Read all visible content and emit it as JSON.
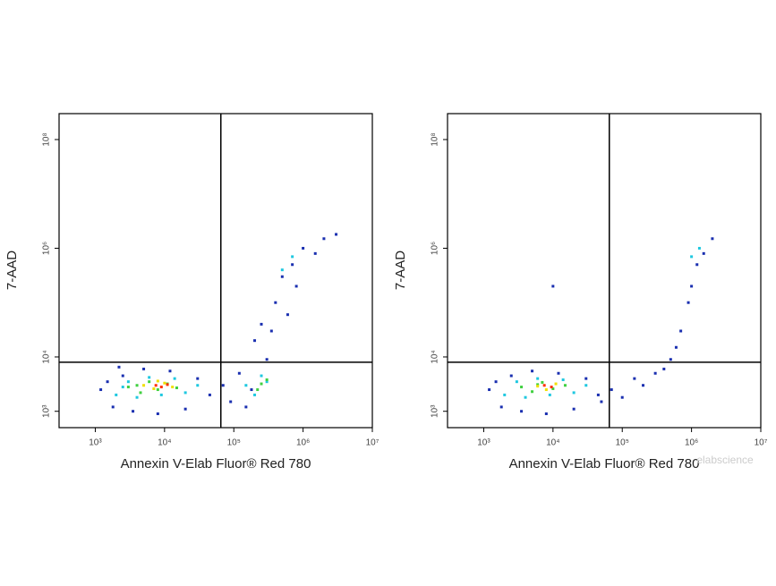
{
  "chart_data": [
    {
      "type": "scatter",
      "x_label": "Annexin V-Elab Fluor® Red 780",
      "y_label": "7-AAD",
      "xscale": "log",
      "yscale": "log",
      "xlim": [
        300,
        10000000
      ],
      "ylim": [
        500,
        300000000
      ],
      "xticks": [
        {
          "value": 1000,
          "label": "10³"
        },
        {
          "value": 10000,
          "label": "10⁴"
        },
        {
          "value": 100000,
          "label": "10⁵"
        },
        {
          "value": 1000000,
          "label": "10⁶"
        },
        {
          "value": 10000000,
          "label": "10⁷"
        }
      ],
      "yticks": [
        {
          "value": 1000,
          "label": "10³"
        },
        {
          "value": 10000,
          "label": "10⁴"
        },
        {
          "value": 1000000,
          "label": "10⁶"
        },
        {
          "value": 100000000,
          "label": "10⁸"
        }
      ],
      "x_gate": 65000,
      "y_gate": 8000,
      "series": [
        {
          "color": "#1a2fb0",
          "x": [
            1200,
            1800,
            2500,
            3500,
            5000,
            8000,
            12000,
            20000,
            30000,
            45000,
            1500,
            2200,
            70000,
            90000,
            120000,
            150000,
            200000,
            250000,
            300000,
            400000,
            500000,
            700000,
            1000000,
            1500000,
            2000000,
            800000,
            3000000,
            600000,
            350000,
            180000
          ],
          "values": [
            2500,
            1200,
            4500,
            1000,
            6000,
            900,
            5500,
            1100,
            4000,
            2000,
            3500,
            6500,
            3000,
            1500,
            5000,
            1200,
            20000,
            40000,
            9000,
            100000,
            300000,
            500000,
            1000000,
            800000,
            1500000,
            200000,
            1800000,
            60000,
            30000,
            2500
          ]
        },
        {
          "color": "#1ec8e0",
          "x": [
            2000,
            3000,
            4000,
            6000,
            9000,
            14000,
            20000,
            30000,
            2500,
            150000,
            200000,
            250000,
            300000,
            500000,
            700000
          ],
          "values": [
            2000,
            3500,
            1800,
            4200,
            2000,
            4000,
            2200,
            3000,
            2800,
            3000,
            2000,
            4500,
            3500,
            400000,
            700000
          ]
        },
        {
          "color": "#40d040",
          "x": [
            3000,
            4500,
            6000,
            8000,
            11000,
            15000,
            4000,
            250000,
            300000,
            220000
          ],
          "values": [
            2800,
            2200,
            3500,
            2500,
            3200,
            2700,
            3000,
            3200,
            3800,
            2500
          ]
        },
        {
          "color": "#f0e000",
          "x": [
            5000,
            7000,
            10000,
            13000,
            8000
          ],
          "values": [
            3000,
            2600,
            3300,
            2800,
            3600
          ]
        },
        {
          "color": "#ff3000",
          "x": [
            7500,
            9000,
            11000
          ],
          "values": [
            3000,
            2800,
            3100
          ]
        }
      ]
    },
    {
      "type": "scatter",
      "x_label": "Annexin V-Elab Fluor® Red 780",
      "y_label": "7-AAD",
      "watermark": "elabscience",
      "xscale": "log",
      "yscale": "log",
      "xlim": [
        300,
        10000000
      ],
      "ylim": [
        500,
        300000000
      ],
      "xticks": [
        {
          "value": 1000,
          "label": "10³"
        },
        {
          "value": 10000,
          "label": "10⁴"
        },
        {
          "value": 100000,
          "label": "10⁵"
        },
        {
          "value": 1000000,
          "label": "10⁶"
        },
        {
          "value": 10000000,
          "label": "10⁷"
        }
      ],
      "yticks": [
        {
          "value": 1000,
          "label": "10³"
        },
        {
          "value": 10000,
          "label": "10⁴"
        },
        {
          "value": 1000000,
          "label": "10⁶"
        },
        {
          "value": 100000000,
          "label": "10⁸"
        }
      ],
      "x_gate": 65000,
      "y_gate": 8000,
      "series": [
        {
          "color": "#1a2fb0",
          "x": [
            1200,
            1800,
            2500,
            3500,
            5000,
            8000,
            12000,
            20000,
            30000,
            45000,
            1500,
            70000,
            100000,
            150000,
            200000,
            300000,
            400000,
            500000,
            700000,
            1000000,
            1500000,
            2000000,
            1200000,
            900000,
            600000,
            50000,
            10000
          ],
          "values": [
            2500,
            1200,
            4500,
            1000,
            5500,
            900,
            5000,
            1100,
            4000,
            2000,
            3500,
            2500,
            1800,
            4000,
            3000,
            5000,
            6000,
            9000,
            30000,
            200000,
            800000,
            1500000,
            500000,
            100000,
            15000,
            1500,
            200000
          ]
        },
        {
          "color": "#1ec8e0",
          "x": [
            2000,
            3000,
            4000,
            6000,
            9000,
            14000,
            20000,
            30000,
            1000000,
            1300000
          ],
          "values": [
            2000,
            3500,
            1800,
            4000,
            2000,
            3800,
            2200,
            3000,
            700000,
            1000000
          ]
        },
        {
          "color": "#40d040",
          "x": [
            3500,
            5000,
            7000,
            10000,
            15000,
            6000
          ],
          "values": [
            2800,
            2300,
            3400,
            2600,
            3000,
            3100
          ]
        },
        {
          "color": "#f0e000",
          "x": [
            6000,
            8000,
            11000
          ],
          "values": [
            2900,
            2500,
            3200
          ]
        },
        {
          "color": "#ff3000",
          "x": [
            7500,
            9500
          ],
          "values": [
            3000,
            2800
          ]
        }
      ]
    }
  ]
}
